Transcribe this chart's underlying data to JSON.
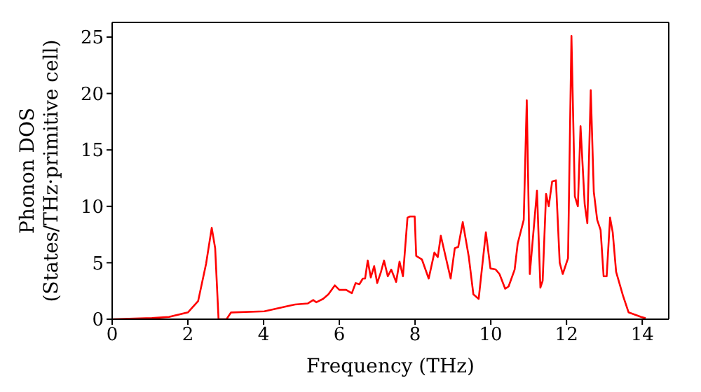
{
  "chart_data": {
    "type": "line",
    "xlabel": "Frequency (THz)",
    "ylabel": "Phonon DOS\n(States/THz·primitive cell)",
    "x": [
      0,
      1.05,
      1.5,
      2.0,
      2.27,
      2.48,
      2.63,
      2.72,
      2.81,
      3.02,
      3.14,
      4.02,
      4.68,
      4.83,
      5.17,
      5.31,
      5.39,
      5.57,
      5.71,
      5.88,
      6.0,
      6.18,
      6.33,
      6.43,
      6.53,
      6.62,
      6.68,
      6.75,
      6.83,
      6.92,
      7.0,
      7.1,
      7.18,
      7.28,
      7.37,
      7.5,
      7.59,
      7.68,
      7.8,
      7.87,
      7.99,
      8.03,
      8.18,
      8.36,
      8.51,
      8.6,
      8.68,
      8.94,
      9.05,
      9.14,
      9.26,
      9.42,
      9.54,
      9.68,
      9.87,
      9.99,
      10.13,
      10.23,
      10.38,
      10.47,
      10.63,
      10.71,
      10.87,
      10.95,
      11.03,
      11.22,
      11.31,
      11.37,
      11.46,
      11.53,
      11.62,
      11.72,
      11.82,
      11.9,
      12.04,
      12.13,
      12.22,
      12.3,
      12.37,
      12.48,
      12.55,
      12.64,
      12.72,
      12.81,
      12.9,
      12.98,
      13.06,
      13.15,
      13.22,
      13.31,
      13.49,
      13.64,
      13.97,
      14.09
    ],
    "series": [
      {
        "color": "#ff0000",
        "values": [
          0,
          0.1,
          0.2,
          0.6,
          1.6,
          4.9,
          8.1,
          6.3,
          0,
          0,
          0.6,
          0.7,
          1.2,
          1.3,
          1.4,
          1.7,
          1.5,
          1.8,
          2.2,
          3.0,
          2.6,
          2.6,
          2.3,
          3.2,
          3.1,
          3.6,
          3.6,
          5.2,
          3.7,
          4.7,
          3.2,
          4.2,
          5.2,
          3.8,
          4.4,
          3.3,
          5.1,
          3.8,
          9.0,
          9.1,
          9.1,
          5.6,
          5.3,
          3.6,
          5.9,
          5.5,
          7.4,
          3.6,
          6.3,
          6.4,
          8.6,
          5.5,
          2.2,
          1.8,
          7.7,
          4.5,
          4.4,
          4.0,
          2.7,
          2.9,
          4.4,
          6.7,
          8.8,
          19.4,
          4.0,
          11.4,
          2.8,
          3.4,
          11.1,
          10.0,
          12.2,
          12.3,
          5.0,
          4.0,
          5.4,
          25.1,
          10.9,
          10.0,
          17.1,
          10.2,
          8.5,
          20.3,
          11.3,
          8.8,
          7.9,
          3.8,
          3.8,
          9.0,
          7.7,
          4.2,
          2.1,
          0.6,
          0.2,
          0.1
        ]
      }
    ],
    "xlim": [
      0,
      14.7
    ],
    "xticks": [
      0,
      2,
      4,
      6,
      8,
      10,
      12,
      14
    ],
    "ylim": [
      0,
      26.3
    ],
    "yticks": [
      0,
      5,
      10,
      15,
      20,
      25
    ],
    "grid": false,
    "legend": false,
    "marker": "none",
    "line_style": "solid"
  }
}
